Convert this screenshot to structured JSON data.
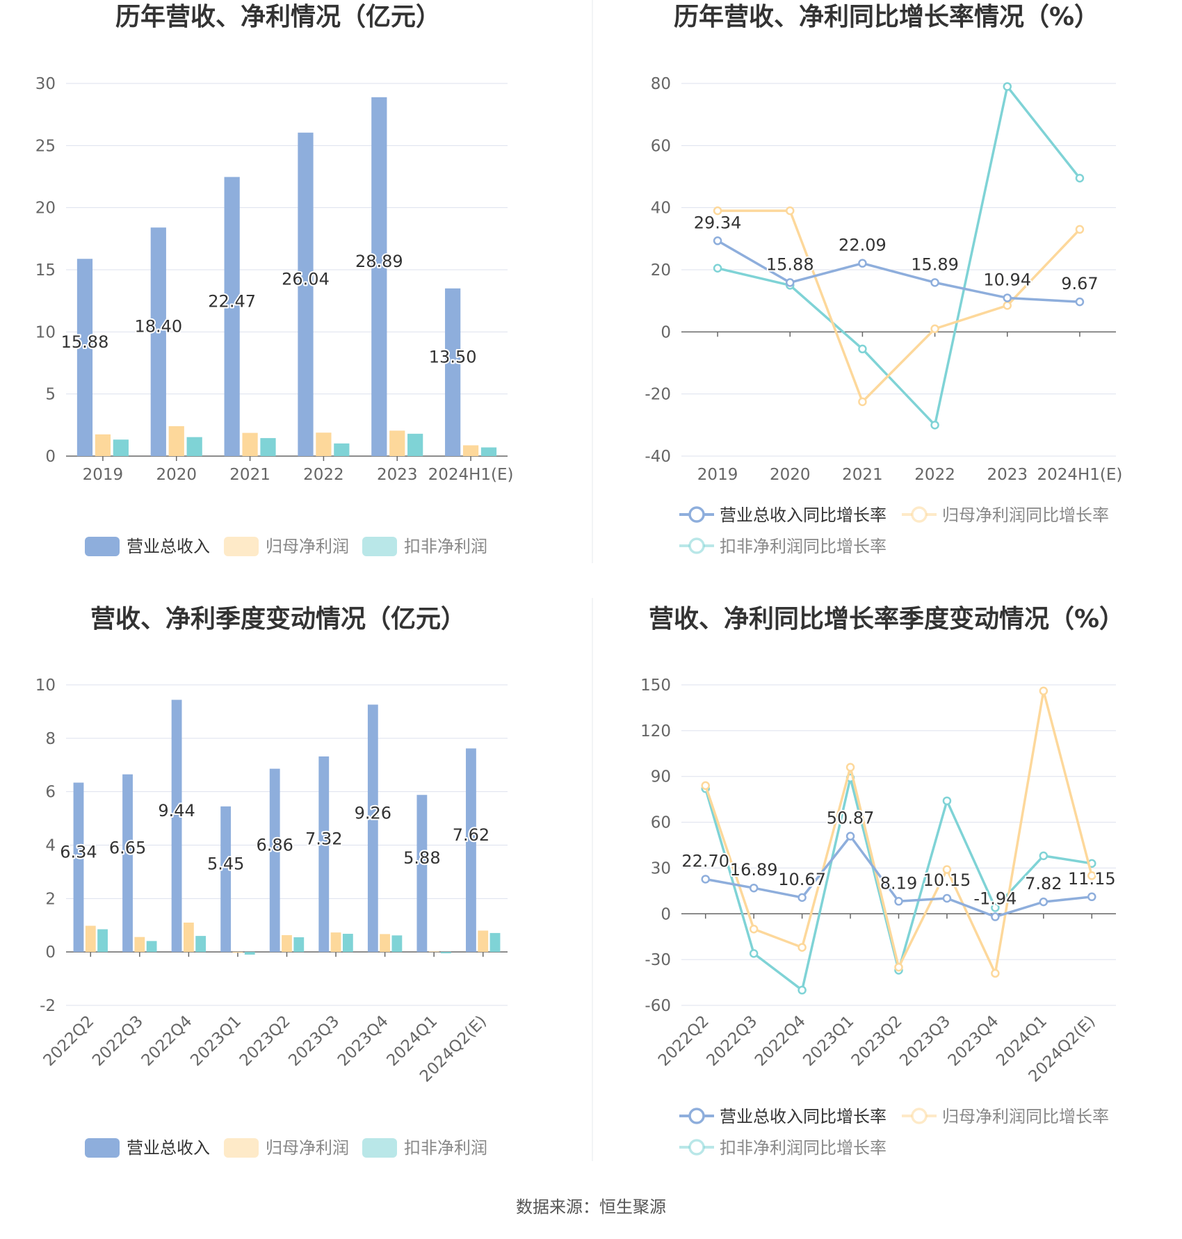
{
  "source": "数据来源：恒生聚源",
  "colors": {
    "revenue": "#8eaedc",
    "net_profit": "#fdd89b",
    "deducted_profit": "#7fd3d6"
  },
  "chart_data": [
    {
      "id": "annual-amount",
      "type": "bar",
      "title": "历年营收、净利情况（亿元）",
      "categories": [
        "2019",
        "2020",
        "2021",
        "2022",
        "2023",
        "2024H1(E)"
      ],
      "ylim": [
        0,
        30
      ],
      "yticks": [
        0,
        5,
        10,
        15,
        20,
        25,
        30
      ],
      "series": [
        {
          "name": "营业总收入",
          "color": "#8eaedc",
          "values": [
            15.88,
            18.4,
            22.47,
            26.04,
            28.89,
            13.5
          ],
          "labels": [
            "15.88",
            "18.40",
            "22.47",
            "26.04",
            "28.89",
            "13.50"
          ]
        },
        {
          "name": "归母净利润",
          "color": "#fdd89b",
          "values": [
            1.75,
            2.41,
            1.87,
            1.89,
            2.05,
            0.87
          ]
        },
        {
          "name": "扣非净利润",
          "color": "#7fd3d6",
          "values": [
            1.33,
            1.53,
            1.45,
            1.02,
            1.8,
            0.7
          ]
        }
      ],
      "legend": "bottom"
    },
    {
      "id": "annual-growth",
      "type": "line",
      "title": "历年营收、净利同比增长率情况（%）",
      "categories": [
        "2019",
        "2020",
        "2021",
        "2022",
        "2023",
        "2024H1(E)"
      ],
      "ylim": [
        -40,
        80
      ],
      "yticks": [
        -40,
        -20,
        0,
        20,
        40,
        60,
        80
      ],
      "series": [
        {
          "name": "营业总收入同比增长率",
          "color": "#8eaedc",
          "values": [
            29.34,
            15.88,
            22.09,
            15.89,
            10.94,
            9.67
          ],
          "labels": [
            "29.34",
            "15.88",
            "22.09",
            "15.89",
            "10.94",
            "9.67"
          ]
        },
        {
          "name": "归母净利润同比增长率",
          "color": "#fdd89b",
          "values": [
            39.0,
            39.0,
            -22.5,
            1.0,
            8.5,
            33.0
          ]
        },
        {
          "name": "扣非净利润同比增长率",
          "color": "#7fd3d6",
          "values": [
            20.5,
            15.0,
            -5.5,
            -30.0,
            79.0,
            49.5
          ]
        }
      ],
      "legend": "bottom"
    },
    {
      "id": "quarter-amount",
      "type": "bar",
      "title": "营收、净利季度变动情况（亿元）",
      "categories": [
        "2022Q2",
        "2022Q3",
        "2022Q4",
        "2023Q1",
        "2023Q2",
        "2023Q3",
        "2023Q4",
        "2024Q1",
        "2024Q2(E)"
      ],
      "ylim": [
        -2,
        10
      ],
      "yticks": [
        -2,
        0,
        2,
        4,
        6,
        8,
        10
      ],
      "series": [
        {
          "name": "营业总收入",
          "color": "#8eaedc",
          "values": [
            6.34,
            6.65,
            9.44,
            5.45,
            6.86,
            7.32,
            9.26,
            5.88,
            7.62
          ],
          "labels": [
            "6.34",
            "6.65",
            "9.44",
            "5.45",
            "6.86",
            "7.32",
            "9.26",
            "5.88",
            "7.62"
          ]
        },
        {
          "name": "归母净利润",
          "color": "#fdd89b",
          "values": [
            0.98,
            0.56,
            1.1,
            -0.03,
            0.63,
            0.73,
            0.67,
            0.02,
            0.8
          ]
        },
        {
          "name": "扣非净利润",
          "color": "#7fd3d6",
          "values": [
            0.85,
            0.41,
            0.6,
            -0.1,
            0.55,
            0.68,
            0.62,
            -0.05,
            0.71
          ]
        }
      ],
      "legend": "bottom"
    },
    {
      "id": "quarter-growth",
      "type": "line",
      "title": "营收、净利同比增长率季度变动情况（%）",
      "categories": [
        "2022Q2",
        "2022Q3",
        "2022Q4",
        "2023Q1",
        "2023Q2",
        "2023Q3",
        "2023Q4",
        "2024Q1",
        "2024Q2(E)"
      ],
      "ylim": [
        -60,
        150
      ],
      "yticks": [
        -60,
        -30,
        0,
        30,
        60,
        90,
        120,
        150
      ],
      "series": [
        {
          "name": "营业总收入同比增长率",
          "color": "#8eaedc",
          "values": [
            22.7,
            16.89,
            10.67,
            50.87,
            8.19,
            10.15,
            -1.94,
            7.82,
            11.15
          ],
          "labels": [
            "22.70",
            "16.89",
            "10.67",
            "50.87",
            "8.19",
            "10.15",
            "-1.94",
            "7.82",
            "11.15"
          ]
        },
        {
          "name": "归母净利润同比增长率",
          "color": "#fdd89b",
          "values": [
            84.0,
            -10.0,
            -22.0,
            96.0,
            -35.0,
            29.0,
            -39.0,
            146.0,
            25.0
          ]
        },
        {
          "name": "扣非净利润同比增长率",
          "color": "#7fd3d6",
          "values": [
            82.0,
            -26.0,
            -50.0,
            89.0,
            -37.0,
            74.0,
            4.0,
            38.0,
            33.0
          ]
        }
      ],
      "legend": "bottom"
    }
  ]
}
